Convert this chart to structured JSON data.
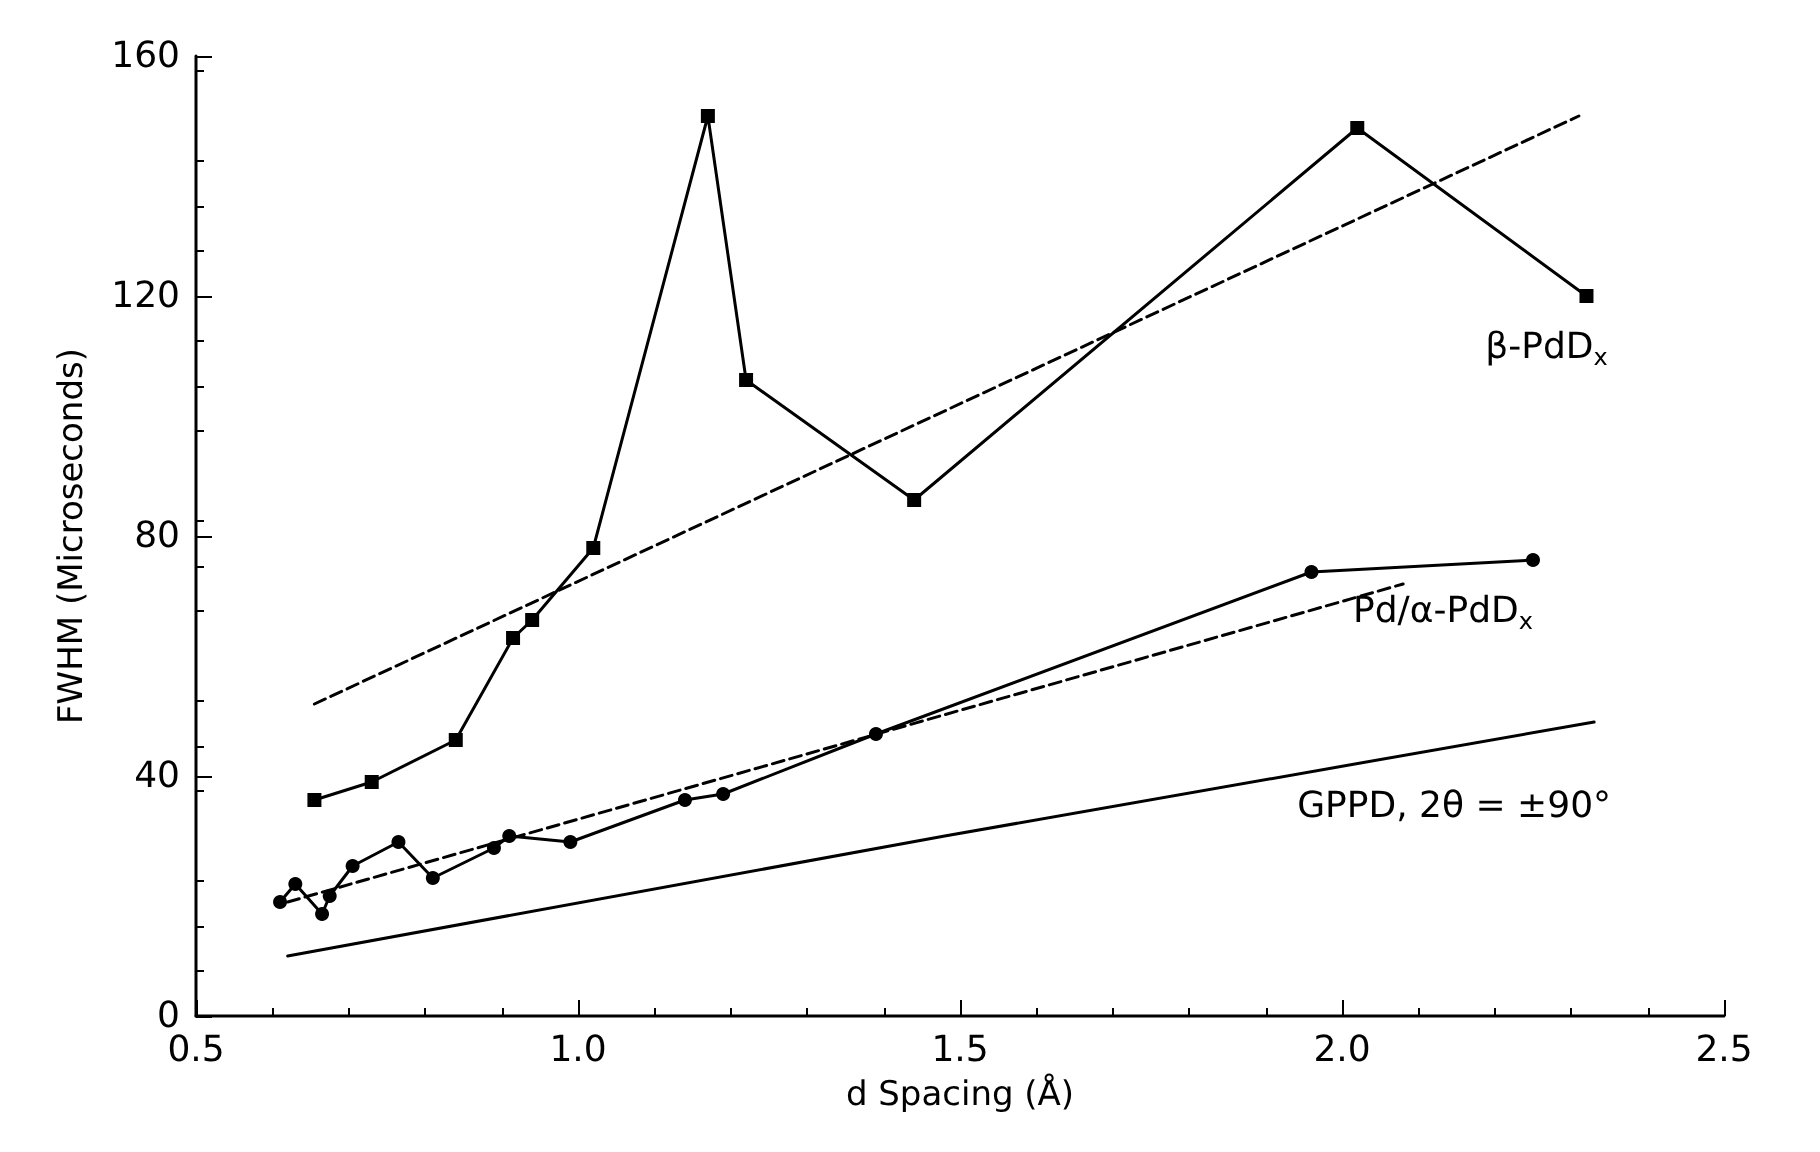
{
  "chart_data": {
    "type": "line",
    "xlabel": "d Spacing (Å)",
    "ylabel": "FWHM (Microseconds)",
    "xlim": [
      0.5,
      2.5
    ],
    "xticks": [
      {
        "value": 0.5,
        "label": "0.5"
      },
      {
        "value": 1,
        "label": "1.0"
      },
      {
        "value": 1.5,
        "label": "1.5"
      },
      {
        "value": 2,
        "label": "2.0"
      },
      {
        "value": 2.5,
        "label": "2.5"
      }
    ],
    "ylim": [
      0,
      160
    ],
    "yticks": [
      0,
      40,
      80,
      120,
      160
    ],
    "grid": false,
    "legend": false,
    "series": [
      {
        "name": "β-PdD$_{x}$",
        "color": "#000000",
        "marker": "square",
        "line_style": "solid",
        "x": [
          0.655,
          0.73,
          0.84,
          0.915,
          0.94,
          1.02,
          1.17,
          1.22,
          1.44,
          2.02,
          2.32
        ],
        "values": [
          36,
          39,
          46,
          63,
          66,
          78,
          150,
          106,
          86,
          148,
          120
        ]
      },
      {
        "color": "#000000",
        "marker": "none",
        "line_style": "dashed",
        "x": [
          0.655,
          2.31
        ],
        "values": [
          52,
          150
        ]
      },
      {
        "name": "Pd/α-PdD$_{x}$",
        "color": "#000000",
        "marker": "circle",
        "line_style": "solid",
        "x": [
          0.61,
          0.63,
          0.665,
          0.675,
          0.705,
          0.765,
          0.81,
          0.89,
          0.91,
          0.99,
          1.14,
          1.19,
          1.39,
          1.96,
          2.25
        ],
        "values": [
          19,
          22,
          17,
          20,
          25,
          29,
          23,
          28,
          30,
          29,
          36,
          37,
          47,
          74,
          76
        ]
      },
      {
        "color": "#000000",
        "marker": "none",
        "line_style": "dashed",
        "x": [
          0.62,
          2.08
        ],
        "values": [
          19,
          72
        ]
      },
      {
        "name": "GPPD, 2θ = ±90°",
        "color": "#000000",
        "marker": "none",
        "line_style": "solid",
        "x": [
          0.62,
          1.48,
          2.33
        ],
        "values": [
          10,
          30,
          49
        ]
      }
    ]
  }
}
